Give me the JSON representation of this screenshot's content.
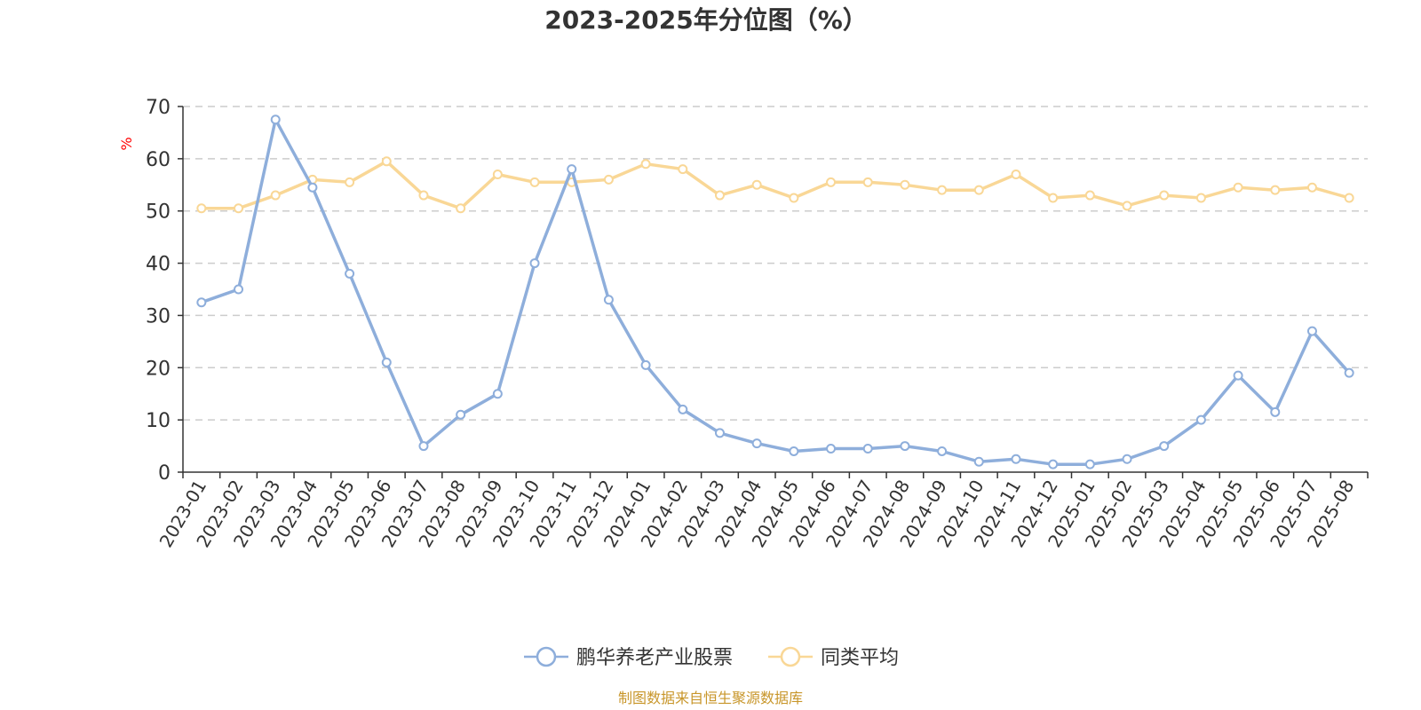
{
  "chart_data": {
    "type": "line",
    "title": "2023-2025年分位图（%）",
    "ylabel": "%",
    "xlabel": "",
    "ylim": [
      0,
      70
    ],
    "yticks": [
      0,
      10,
      20,
      30,
      40,
      50,
      60,
      70
    ],
    "grid": true,
    "legend_position": "bottom",
    "categories": [
      "2023-01",
      "2023-02",
      "2023-03",
      "2023-04",
      "2023-05",
      "2023-06",
      "2023-07",
      "2023-08",
      "2023-09",
      "2023-10",
      "2023-11",
      "2023-12",
      "2024-01",
      "2024-02",
      "2024-03",
      "2024-04",
      "2024-05",
      "2024-06",
      "2024-07",
      "2024-08",
      "2024-09",
      "2024-10",
      "2024-11",
      "2024-12",
      "2025-01",
      "2025-02",
      "2025-03",
      "2025-04",
      "2025-05",
      "2025-06",
      "2025-07",
      "2025-08"
    ],
    "series": [
      {
        "name": "鹏华养老产业股票",
        "color": "#8eaedb",
        "values": [
          32.5,
          35.0,
          67.5,
          54.5,
          38.0,
          21.0,
          5.0,
          11.0,
          15.0,
          40.0,
          58.0,
          33.0,
          20.5,
          12.0,
          7.5,
          5.5,
          4.0,
          4.5,
          4.5,
          5.0,
          4.0,
          2.0,
          2.5,
          1.5,
          1.5,
          2.5,
          5.0,
          10.0,
          18.5,
          11.5,
          27.0,
          19.0
        ]
      },
      {
        "name": "同类平均",
        "color": "#f9d796",
        "values": [
          50.5,
          50.5,
          53.0,
          56.0,
          55.5,
          59.5,
          53.0,
          50.5,
          57.0,
          55.5,
          55.5,
          56.0,
          59.0,
          58.0,
          53.0,
          55.0,
          52.5,
          55.5,
          55.5,
          55.0,
          54.0,
          54.0,
          57.0,
          52.5,
          53.0,
          51.0,
          53.0,
          52.5,
          54.5,
          54.0,
          54.5,
          52.5
        ]
      }
    ],
    "ylabel_color": "#ff0000",
    "axis_color": "#333333",
    "grid_color": "#cccccc"
  },
  "source": {
    "text": "制图数据来自恒生聚源数据库",
    "color": "#c8962a"
  }
}
